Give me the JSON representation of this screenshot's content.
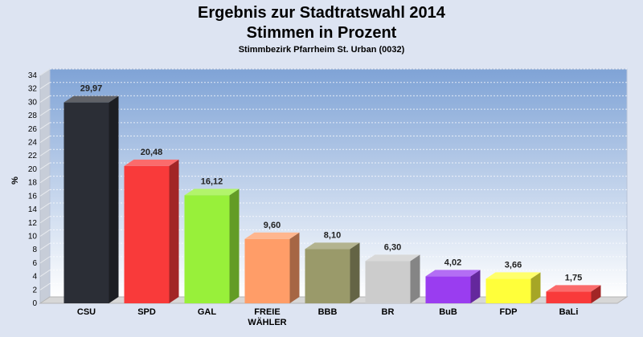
{
  "chart_data": {
    "type": "bar",
    "title": [
      "Ergebnis zur Stadtratswahl 2014",
      "Stimmen in Prozent"
    ],
    "subtitle": "Stimmbezirk Pfarrheim St. Urban (0032)",
    "ylabel": "%",
    "ylim": [
      0,
      34
    ],
    "yticks": [
      "0",
      "2",
      "4",
      "6",
      "8",
      "10",
      "12",
      "14",
      "16",
      "18",
      "20",
      "22",
      "24",
      "26",
      "28",
      "30",
      "32",
      "34"
    ],
    "grid": true,
    "categories": [
      [
        "CSU"
      ],
      [
        "SPD"
      ],
      [
        "GAL"
      ],
      [
        "FREIE",
        "WÄHLER"
      ],
      [
        "BBB"
      ],
      [
        "BR"
      ],
      [
        "BuB"
      ],
      [
        "FDP"
      ],
      [
        "BaLi"
      ]
    ],
    "values": [
      29.97,
      20.48,
      16.12,
      9.6,
      8.1,
      6.3,
      4.02,
      3.66,
      1.75
    ],
    "value_labels": [
      "29,97",
      "20,48",
      "16,12",
      "9,60",
      "8,10",
      "6,30",
      "4,02",
      "3,66",
      "1,75"
    ],
    "colors": [
      "#2b2e36",
      "#f93a3a",
      "#98f03a",
      "#ff9d68",
      "#9a9a6a",
      "#cccccc",
      "#9a3df0",
      "#ffff3a",
      "#f93a3a"
    ]
  }
}
